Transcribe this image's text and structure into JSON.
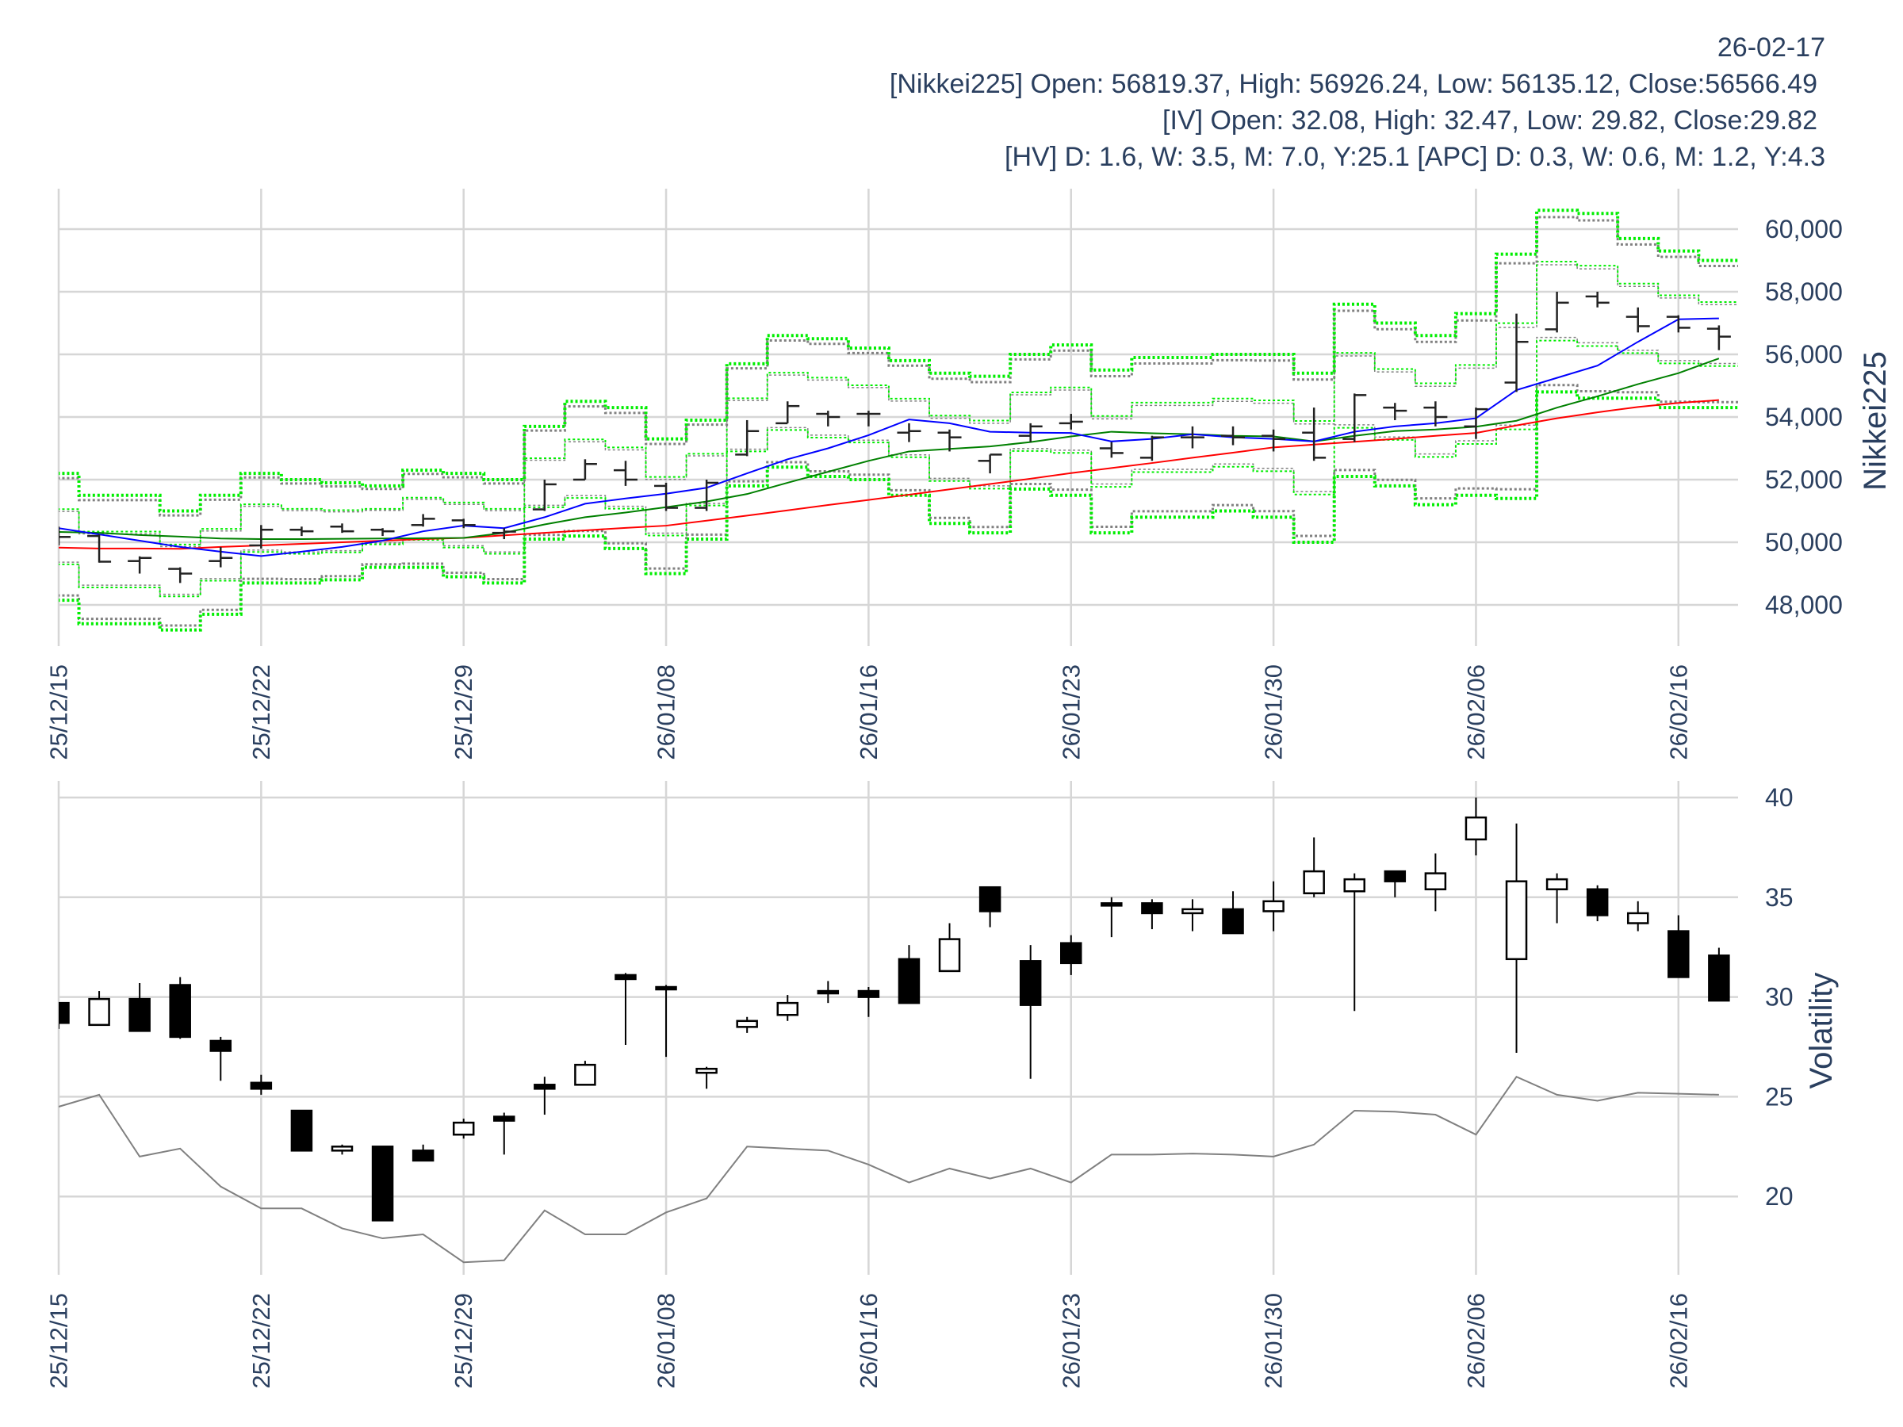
{
  "header": {
    "date": "26-02-17",
    "nikkei_line": "[Nikkei225] Open: 56819.37, High: 56926.24, Low: 56135.12, Close:56566.49",
    "iv_line": "[IV] Open: 32.08, High: 32.47, Low: 29.82, Close:29.82",
    "hv_line": "[HV] D: 1.6, W: 3.5, M: 7.0, Y:25.1 [APC] D: 0.3, W: 0.6, M: 1.2, Y:4.3"
  },
  "colors": {
    "text": "#2a3f5f",
    "grid": "#d6d6d6",
    "ma_short": "#0000ff",
    "ma_mid": "#008000",
    "ma_long": "#ff0000",
    "band_outer": "#00ee00",
    "band_gray": "#808080",
    "hv": "#808080",
    "bar": "#222222"
  },
  "dates": [
    "25/12/15",
    "25/12/16",
    "25/12/17",
    "25/12/18",
    "25/12/19",
    "25/12/22",
    "25/12/23",
    "25/12/24",
    "25/12/25",
    "25/12/26",
    "25/12/29",
    "25/12/30",
    "26/01/05",
    "26/01/06",
    "26/01/07",
    "26/01/08",
    "26/01/09",
    "26/01/13",
    "26/01/14",
    "26/01/15",
    "26/01/16",
    "26/01/19",
    "26/01/20",
    "26/01/21",
    "26/01/22",
    "26/01/23",
    "26/01/26",
    "26/01/27",
    "26/01/28",
    "26/01/29",
    "26/01/30",
    "26/02/02",
    "26/02/03",
    "26/02/04",
    "26/02/05",
    "26/02/06",
    "26/02/09",
    "26/02/10",
    "26/02/12",
    "26/02/13",
    "26/02/16",
    "26/02/17"
  ],
  "x_ticks": [
    "25/12/15",
    "25/12/22",
    "25/12/29",
    "26/01/08",
    "26/01/16",
    "26/01/23",
    "26/01/30",
    "26/02/06",
    "26/02/16"
  ],
  "chart_data": [
    {
      "type": "ohlc",
      "title": "Nikkei225",
      "ylabel": "Nikkei225",
      "ylim": [
        46800,
        61300
      ],
      "y_ticks": [
        48000,
        50000,
        52000,
        54000,
        56000,
        58000,
        60000
      ],
      "y_tick_labels": [
        "48,000",
        "50,000",
        "52,000",
        "54,000",
        "56,000",
        "58,000",
        "60,000"
      ],
      "open": [
        50300,
        50200,
        49400,
        49150,
        49400,
        49900,
        50400,
        50500,
        50400,
        50550,
        50700,
        50300,
        51050,
        52000,
        52300,
        51800,
        51100,
        52800,
        53800,
        54100,
        54100,
        53500,
        53500,
        52600,
        53400,
        53800,
        53000,
        52700,
        53350,
        53400,
        53400,
        53500,
        53300,
        54300,
        54300,
        53700,
        55100,
        56800,
        57850,
        57200,
        57200,
        56819.37
      ],
      "high": [
        50500,
        50250,
        49550,
        49200,
        49850,
        50550,
        50500,
        50600,
        50450,
        50900,
        50750,
        50450,
        52000,
        52650,
        52600,
        51900,
        52000,
        53900,
        54500,
        54200,
        54200,
        53800,
        53600,
        52800,
        53800,
        54100,
        53200,
        53400,
        53700,
        53700,
        53600,
        54300,
        54750,
        54450,
        54500,
        54300,
        57300,
        58000,
        58000,
        57500,
        57250,
        56926.24
      ],
      "low": [
        49900,
        49350,
        49000,
        48700,
        49200,
        49800,
        50200,
        50300,
        50200,
        50500,
        50450,
        50100,
        51000,
        52000,
        51800,
        51000,
        51000,
        52750,
        53800,
        53700,
        53700,
        53200,
        52900,
        52200,
        53200,
        53600,
        52700,
        52600,
        53000,
        53100,
        52900,
        52600,
        53200,
        53900,
        53700,
        53300,
        54800,
        56700,
        57500,
        56700,
        56700,
        56135.12
      ],
      "close": [
        50170,
        49380,
        49500,
        49000,
        49500,
        50400,
        50350,
        50350,
        50350,
        50750,
        50550,
        50340,
        51850,
        52500,
        52000,
        51100,
        51900,
        53550,
        54350,
        54000,
        54100,
        53550,
        53350,
        52800,
        53700,
        53850,
        52850,
        53350,
        53350,
        53350,
        53300,
        52700,
        54700,
        54200,
        54000,
        54250,
        56400,
        57650,
        57650,
        56900,
        56850,
        56566.49
      ],
      "ma_short": [
        50450,
        50250,
        50050,
        49850,
        49700,
        49560,
        49700,
        49850,
        50050,
        50350,
        50530,
        50450,
        50800,
        51230,
        51400,
        51550,
        51740,
        52200,
        52650,
        53000,
        53420,
        53920,
        53800,
        53530,
        53500,
        53490,
        53220,
        53300,
        53450,
        53350,
        53300,
        53220,
        53530,
        53700,
        53800,
        53960,
        54860,
        55250,
        55640,
        56400,
        57120,
        57150
      ],
      "ma_mid": [
        50330,
        50300,
        50230,
        50180,
        50120,
        50100,
        50100,
        50110,
        50120,
        50130,
        50140,
        50300,
        50570,
        50800,
        50950,
        51120,
        51300,
        51540,
        51900,
        52250,
        52600,
        52900,
        52980,
        53060,
        53200,
        53380,
        53530,
        53480,
        53450,
        53400,
        53380,
        53220,
        53400,
        53550,
        53600,
        53690,
        53880,
        54300,
        54660,
        55050,
        55400,
        55870
      ],
      "ma_long": [
        49830,
        49800,
        49800,
        49790,
        49850,
        49900,
        49950,
        50000,
        50050,
        50100,
        50140,
        50220,
        50300,
        50380,
        50460,
        50530,
        50690,
        50850,
        51020,
        51190,
        51350,
        51520,
        51690,
        51860,
        52030,
        52210,
        52370,
        52530,
        52700,
        52860,
        53030,
        53120,
        53210,
        53300,
        53400,
        53490,
        53730,
        53960,
        54150,
        54320,
        54450,
        54540
      ],
      "band_upper": [
        52200,
        51500,
        51500,
        51000,
        51500,
        52200,
        52000,
        51900,
        51800,
        52300,
        52200,
        52000,
        53700,
        54500,
        54300,
        53300,
        53900,
        55700,
        56600,
        56500,
        56200,
        55800,
        55400,
        55300,
        56000,
        56300,
        55500,
        55900,
        55900,
        56000,
        56000,
        55400,
        57600,
        57000,
        56600,
        57300,
        59200,
        60600,
        60500,
        59700,
        59300,
        59000
      ],
      "band_lower": [
        48150,
        47400,
        47400,
        47200,
        47700,
        48700,
        48700,
        48800,
        49200,
        49200,
        48900,
        48700,
        50100,
        50200,
        49800,
        49000,
        50100,
        51800,
        52400,
        52100,
        52000,
        51500,
        50600,
        50300,
        51700,
        51500,
        50300,
        50800,
        50800,
        51000,
        50800,
        50000,
        52100,
        51800,
        51200,
        51500,
        51400,
        54800,
        54600,
        54600,
        54300,
        54300
      ],
      "band_levels": [
        1.0,
        0.925,
        0.435,
        0.4
      ]
    },
    {
      "type": "candlestick",
      "title": "IV",
      "ylabel": "Volatility",
      "ylim": [
        15.3,
        40.8
      ],
      "y_ticks": [
        20,
        25,
        30,
        35,
        40
      ],
      "y_tick_labels": [
        "20",
        "25",
        "30",
        "35",
        "40"
      ],
      "open": [
        29.7,
        28.6,
        29.9,
        30.6,
        27.8,
        25.7,
        24.3,
        22.3,
        22.5,
        22.3,
        23.1,
        24.0,
        25.6,
        25.6,
        31.1,
        30.5,
        26.2,
        28.5,
        29.1,
        30.3,
        30.3,
        31.9,
        31.3,
        35.5,
        31.8,
        32.7,
        34.7,
        34.7,
        34.2,
        34.4,
        34.3,
        35.2,
        35.3,
        36.3,
        35.4,
        37.9,
        31.9,
        35.4,
        35.4,
        33.7,
        33.3,
        32.08
      ],
      "high": [
        29.7,
        30.3,
        30.7,
        31.0,
        28.0,
        26.1,
        24.3,
        22.6,
        22.5,
        22.6,
        23.9,
        24.2,
        26.0,
        26.8,
        31.2,
        30.6,
        26.5,
        29.0,
        30.1,
        30.8,
        30.5,
        32.6,
        33.7,
        35.5,
        32.6,
        33.1,
        35.0,
        34.9,
        34.9,
        35.3,
        35.8,
        38.0,
        36.2,
        36.3,
        37.2,
        40.0,
        38.7,
        36.2,
        35.6,
        34.8,
        34.1,
        32.47
      ],
      "low": [
        28.4,
        28.6,
        28.3,
        27.9,
        25.8,
        25.1,
        22.3,
        22.1,
        18.8,
        21.8,
        22.9,
        22.1,
        24.1,
        25.6,
        27.6,
        27.0,
        25.4,
        28.2,
        28.8,
        29.7,
        29.0,
        29.7,
        31.3,
        33.5,
        25.9,
        31.1,
        33.0,
        33.4,
        33.3,
        33.2,
        33.3,
        35.0,
        29.3,
        35.0,
        34.3,
        37.1,
        27.2,
        33.7,
        33.8,
        33.3,
        31.0,
        29.82
      ],
      "close": [
        28.7,
        29.9,
        28.3,
        28.0,
        27.3,
        25.4,
        22.3,
        22.5,
        18.8,
        21.8,
        23.7,
        23.8,
        25.4,
        26.6,
        30.9,
        30.4,
        26.4,
        28.8,
        29.7,
        30.2,
        30.0,
        29.7,
        32.9,
        34.3,
        29.6,
        31.7,
        34.6,
        34.2,
        34.4,
        33.2,
        34.8,
        36.3,
        35.9,
        35.8,
        36.2,
        39.0,
        35.8,
        35.9,
        34.1,
        34.2,
        31.0,
        29.82
      ],
      "hv": [
        24.5,
        25.1,
        22.0,
        22.4,
        20.5,
        19.4,
        19.4,
        18.4,
        17.9,
        18.1,
        16.7,
        16.8,
        19.3,
        18.1,
        18.1,
        19.2,
        19.9,
        22.5,
        22.4,
        22.3,
        21.6,
        20.7,
        21.4,
        20.9,
        21.4,
        20.7,
        22.1,
        22.1,
        22.15,
        22.1,
        22.0,
        22.6,
        24.3,
        24.25,
        24.1,
        23.1,
        26.0,
        25.1,
        24.8,
        25.2,
        25.15,
        25.1
      ]
    }
  ]
}
